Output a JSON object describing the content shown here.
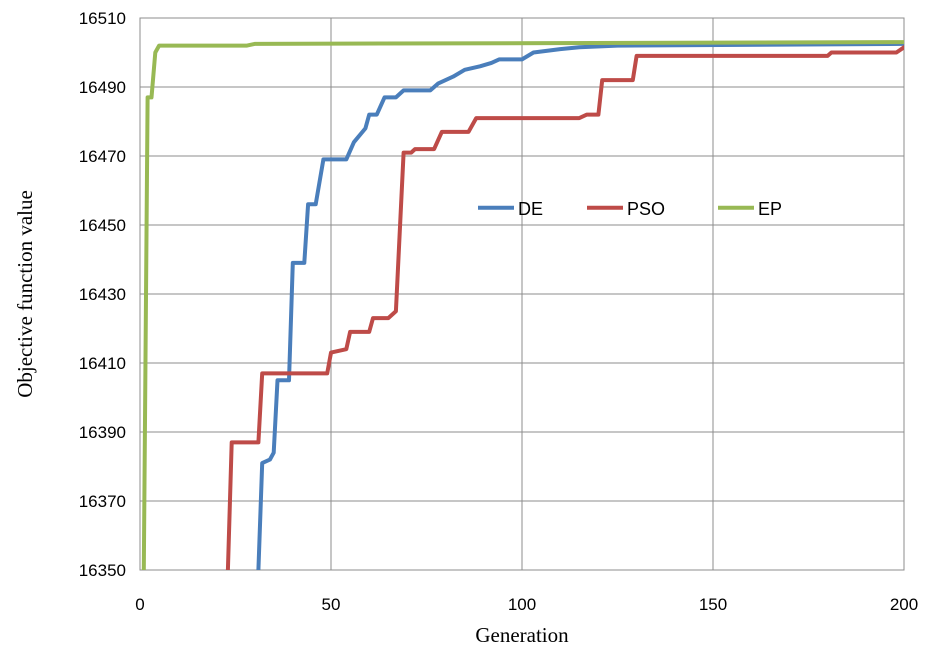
{
  "chart_data": {
    "type": "line",
    "xlabel": "Generation",
    "ylabel": "Objective function value",
    "xlim": [
      0,
      200
    ],
    "ylim": [
      16350,
      16510
    ],
    "xticks": [
      0,
      50,
      100,
      150,
      200
    ],
    "yticks": [
      16350,
      16370,
      16390,
      16410,
      16430,
      16450,
      16470,
      16490,
      16510
    ],
    "grid": true,
    "legend_position": "center-right",
    "series": [
      {
        "name": "DE",
        "color": "#4a7ebb",
        "points": [
          [
            31,
            16342
          ],
          [
            31,
            16350
          ],
          [
            32,
            16381
          ],
          [
            34,
            16382
          ],
          [
            35,
            16384
          ],
          [
            36,
            16405
          ],
          [
            39,
            16405
          ],
          [
            40,
            16439
          ],
          [
            43,
            16439
          ],
          [
            44,
            16456
          ],
          [
            46,
            16456
          ],
          [
            48,
            16469
          ],
          [
            54,
            16469
          ],
          [
            56,
            16474
          ],
          [
            59,
            16478
          ],
          [
            60,
            16482
          ],
          [
            62,
            16482
          ],
          [
            64,
            16487
          ],
          [
            67,
            16487
          ],
          [
            69,
            16489
          ],
          [
            76,
            16489
          ],
          [
            78,
            16491
          ],
          [
            82,
            16493
          ],
          [
            85,
            16495
          ],
          [
            89,
            16496
          ],
          [
            92,
            16497
          ],
          [
            94,
            16498
          ],
          [
            100,
            16498
          ],
          [
            103,
            16500
          ],
          [
            110,
            16501
          ],
          [
            115,
            16501.5
          ],
          [
            125,
            16502
          ],
          [
            200,
            16502.5
          ]
        ]
      },
      {
        "name": "PSO",
        "color": "#be4b48",
        "points": [
          [
            23,
            16348
          ],
          [
            23,
            16350
          ],
          [
            24,
            16387
          ],
          [
            31,
            16387
          ],
          [
            32,
            16407
          ],
          [
            49,
            16407
          ],
          [
            50,
            16413
          ],
          [
            54,
            16414
          ],
          [
            55,
            16419
          ],
          [
            60,
            16419
          ],
          [
            61,
            16423
          ],
          [
            65,
            16423
          ],
          [
            67,
            16425
          ],
          [
            69,
            16471
          ],
          [
            71,
            16471
          ],
          [
            72,
            16472
          ],
          [
            77,
            16472
          ],
          [
            79,
            16477
          ],
          [
            86,
            16477
          ],
          [
            88,
            16481
          ],
          [
            115,
            16481
          ],
          [
            117,
            16482
          ],
          [
            120,
            16482
          ],
          [
            121,
            16492
          ],
          [
            129,
            16492
          ],
          [
            130,
            16499
          ],
          [
            180,
            16499
          ],
          [
            181,
            16500
          ],
          [
            198,
            16500
          ],
          [
            200,
            16501.5
          ]
        ]
      },
      {
        "name": "EP",
        "color": "#98b954",
        "points": [
          [
            1,
            16348
          ],
          [
            1,
            16350
          ],
          [
            2,
            16487
          ],
          [
            3,
            16487
          ],
          [
            4,
            16500
          ],
          [
            5,
            16502
          ],
          [
            28,
            16502
          ],
          [
            30,
            16502.5
          ],
          [
            200,
            16503
          ]
        ]
      }
    ]
  }
}
